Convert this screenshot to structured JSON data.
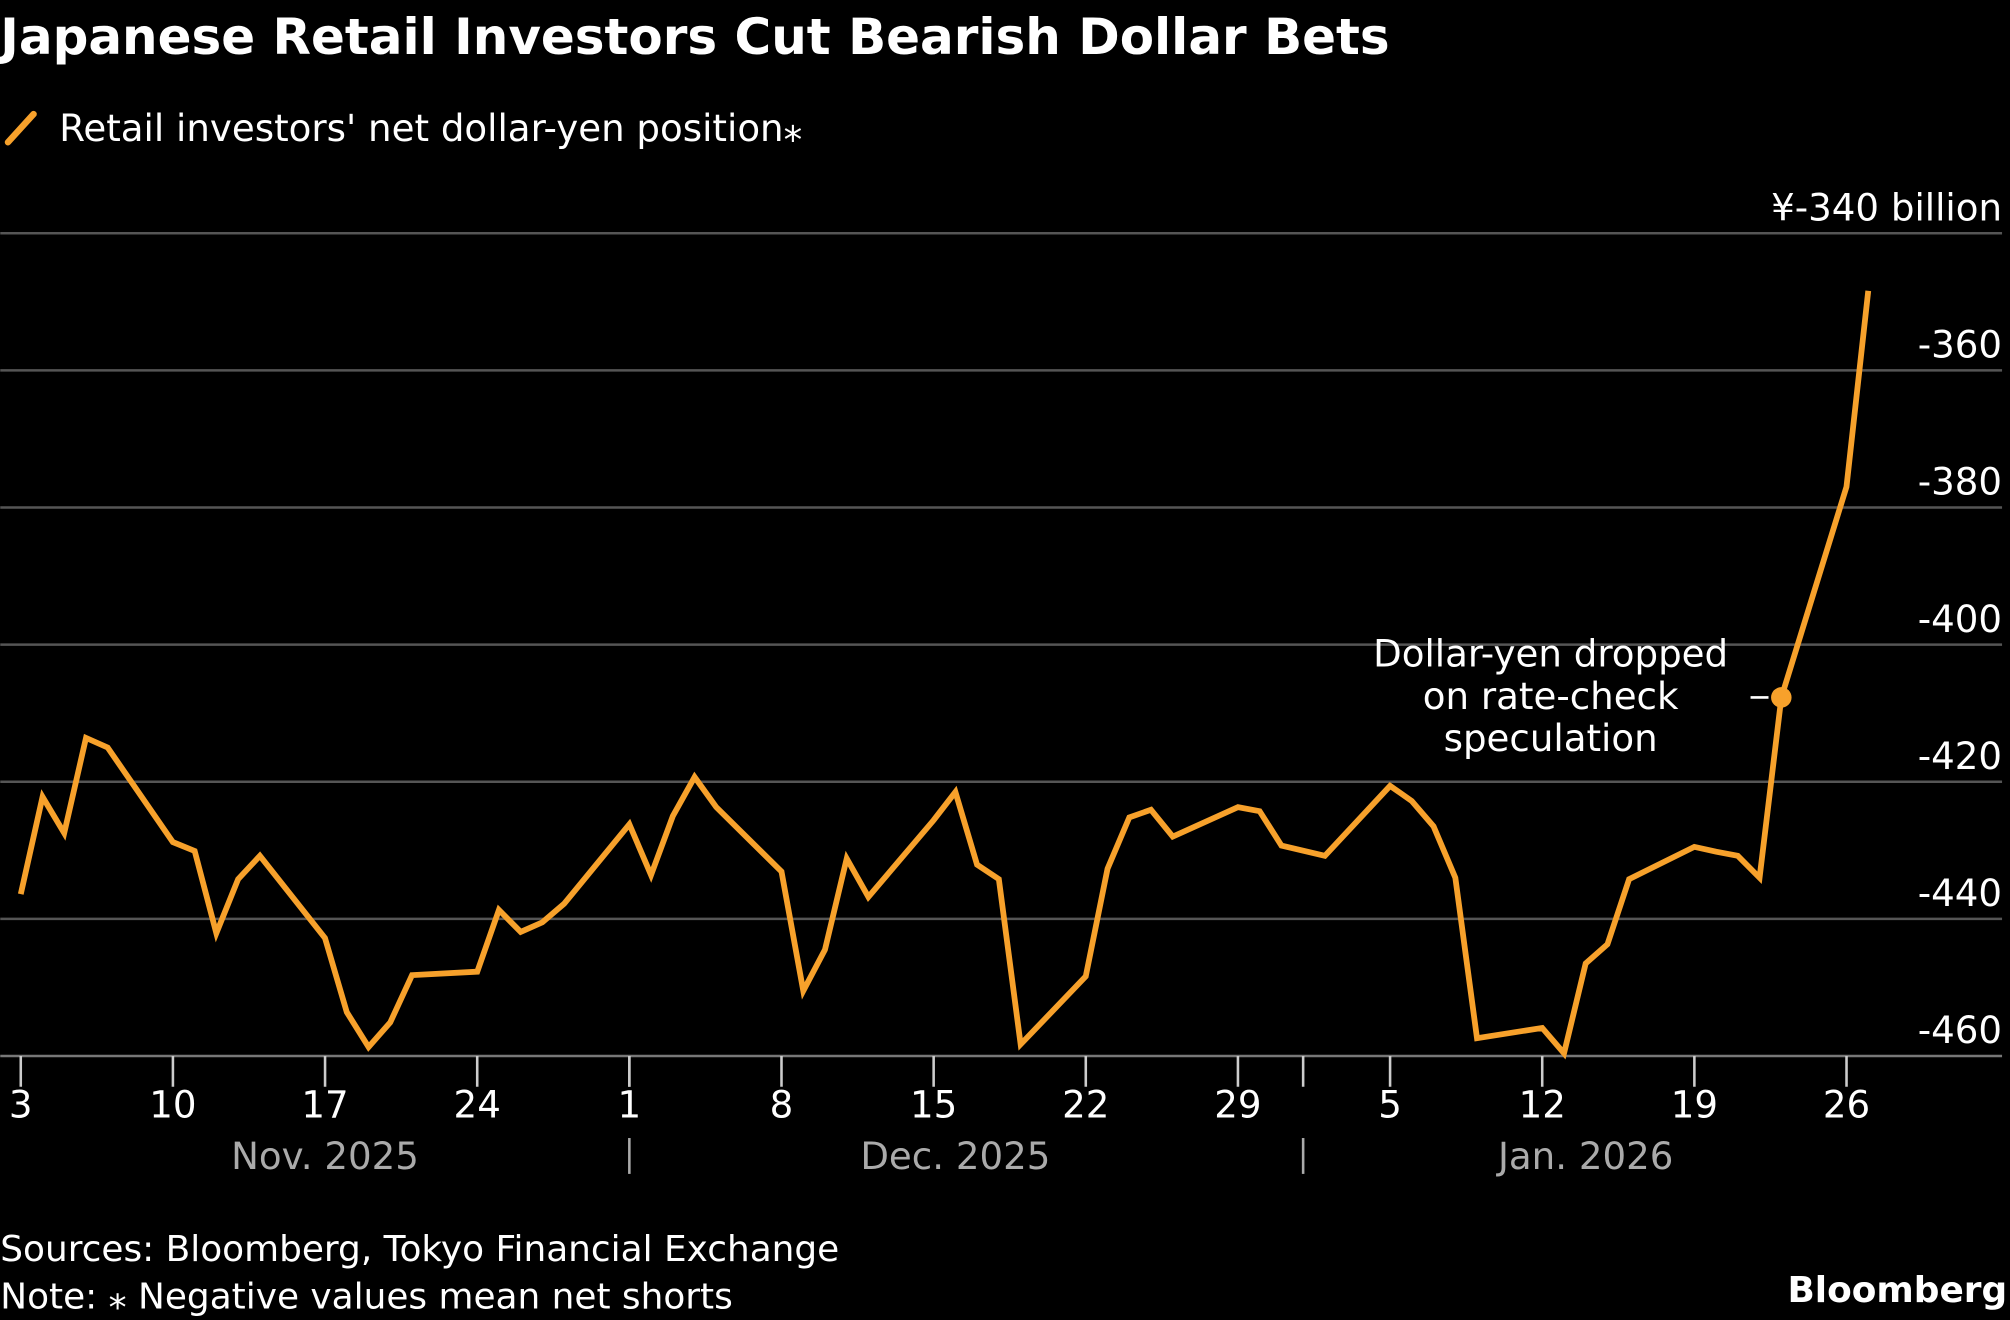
{
  "title": "Japanese Retail Investors Cut Bearish Dollar Bets",
  "legend": {
    "label": "Retail investors' net dollar-yen position⁎",
    "color": "#f7a12b"
  },
  "footer": {
    "sources": "Sources: Bloomberg, Tokyo Financial Exchange",
    "note": "Note: ⁎ Negative values mean net shorts",
    "brand": "Bloomberg"
  },
  "chart_data": {
    "type": "line",
    "title": "Japanese Retail Investors Cut Bearish Dollar Bets",
    "ylabel": "",
    "y_unit_label": "¥-340 billion",
    "ylim": [
      -463,
      -340
    ],
    "yticks": [
      -340,
      -360,
      -380,
      -400,
      -420,
      -440,
      -460
    ],
    "ytick_labels": [
      "¥-340 billion",
      "-360",
      "-380",
      "-400",
      "-420",
      "-440",
      "-460"
    ],
    "grid": true,
    "xticks": [
      {
        "date": "2025-11-03",
        "label": "3"
      },
      {
        "date": "2025-11-10",
        "label": "10"
      },
      {
        "date": "2025-11-17",
        "label": "17"
      },
      {
        "date": "2025-11-24",
        "label": "24"
      },
      {
        "date": "2025-12-01",
        "label": "1"
      },
      {
        "date": "2025-12-08",
        "label": "8"
      },
      {
        "date": "2025-12-15",
        "label": "15"
      },
      {
        "date": "2025-12-22",
        "label": "22"
      },
      {
        "date": "2025-12-29",
        "label": "29"
      },
      {
        "date": "2026-01-05",
        "label": "5"
      },
      {
        "date": "2026-01-12",
        "label": "12"
      },
      {
        "date": "2026-01-19",
        "label": "19"
      },
      {
        "date": "2026-01-26",
        "label": "26"
      }
    ],
    "months": [
      {
        "label": "Nov. 2025",
        "center": "2025-11-17"
      },
      {
        "label": "Dec. 2025",
        "center": "2025-12-16"
      },
      {
        "label": "Jan. 2026",
        "center": "2026-01-14"
      }
    ],
    "month_boundaries": [
      "2025-12-01",
      "2026-01-01"
    ],
    "series": [
      {
        "name": "Retail investors' net dollar-yen position",
        "color": "#f7a12b",
        "points": [
          [
            "2025-11-03",
            -436.4
          ],
          [
            "2025-11-04",
            -422.2
          ],
          [
            "2025-11-05",
            -427.5
          ],
          [
            "2025-11-06",
            -413.6
          ],
          [
            "2025-11-07",
            -415.0
          ],
          [
            "2025-11-10",
            -428.8
          ],
          [
            "2025-11-11",
            -430.1
          ],
          [
            "2025-11-12",
            -442.1
          ],
          [
            "2025-11-13",
            -434.2
          ],
          [
            "2025-11-14",
            -430.8
          ],
          [
            "2025-11-17",
            -442.8
          ],
          [
            "2025-11-18",
            -453.6
          ],
          [
            "2025-11-19",
            -458.7
          ],
          [
            "2025-11-20",
            -455.1
          ],
          [
            "2025-11-21",
            -448.2
          ],
          [
            "2025-11-24",
            -447.7
          ],
          [
            "2025-11-25",
            -438.7
          ],
          [
            "2025-11-26",
            -441.9
          ],
          [
            "2025-11-27",
            -440.5
          ],
          [
            "2025-11-28",
            -437.8
          ],
          [
            "2025-12-01",
            -426.2
          ],
          [
            "2025-12-02",
            -433.6
          ],
          [
            "2025-12-03",
            -425.0
          ],
          [
            "2025-12-04",
            -419.3
          ],
          [
            "2025-12-05",
            -423.7
          ],
          [
            "2025-12-08",
            -433.1
          ],
          [
            "2025-12-09",
            -450.5
          ],
          [
            "2025-12-10",
            -444.5
          ],
          [
            "2025-12-11",
            -431.2
          ],
          [
            "2025-12-12",
            -436.8
          ],
          [
            "2025-12-15",
            -425.6
          ],
          [
            "2025-12-16",
            -421.5
          ],
          [
            "2025-12-17",
            -432.1
          ],
          [
            "2025-12-18",
            -434.2
          ],
          [
            "2025-12-19",
            -458.3
          ],
          [
            "2025-12-22",
            -448.4
          ],
          [
            "2025-12-23",
            -432.7
          ],
          [
            "2025-12-24",
            -425.2
          ],
          [
            "2025-12-25",
            -424.1
          ],
          [
            "2025-12-26",
            -428.0
          ],
          [
            "2025-12-29",
            -423.7
          ],
          [
            "2025-12-30",
            -424.3
          ],
          [
            "2025-12-31",
            -429.3
          ],
          [
            "2026-01-02",
            -430.8
          ],
          [
            "2026-01-05",
            -420.6
          ],
          [
            "2026-01-06",
            -422.8
          ],
          [
            "2026-01-07",
            -426.5
          ],
          [
            "2026-01-08",
            -434.0
          ],
          [
            "2026-01-09",
            -457.4
          ],
          [
            "2026-01-12",
            -455.9
          ],
          [
            "2026-01-13",
            -459.6
          ],
          [
            "2026-01-14",
            -446.5
          ],
          [
            "2026-01-15",
            -443.7
          ],
          [
            "2026-01-16",
            -434.2
          ],
          [
            "2026-01-19",
            -429.5
          ],
          [
            "2026-01-20",
            -430.2
          ],
          [
            "2026-01-21",
            -430.8
          ],
          [
            "2026-01-22",
            -434.0
          ],
          [
            "2026-01-23",
            -407.7
          ],
          [
            "2026-01-26",
            -377.0
          ],
          [
            "2026-01-27",
            -348.4
          ]
        ]
      }
    ],
    "annotations": [
      {
        "date": "2026-01-23",
        "value": -407.7,
        "lines": [
          "Dollar-yen dropped",
          "on rate-check",
          "speculation"
        ]
      }
    ]
  }
}
